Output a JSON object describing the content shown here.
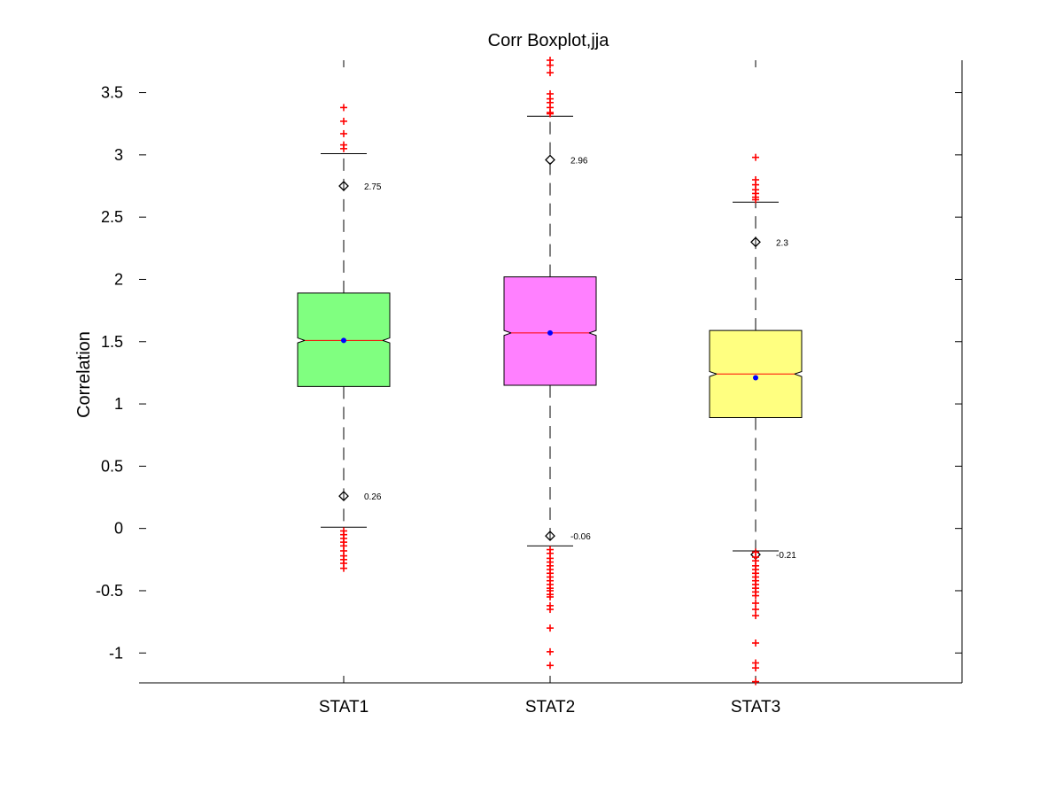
{
  "chart_data": {
    "type": "boxplot",
    "title": "Corr Boxplot,jja",
    "xlabel": "",
    "ylabel": "Correlation",
    "ylim": [
      -1.24,
      3.76
    ],
    "yticks": [
      -1,
      -0.5,
      0,
      0.5,
      1,
      1.5,
      2,
      2.5,
      3,
      3.5
    ],
    "ytick_labels": [
      "-1",
      "-0.5",
      "0",
      "0.5",
      "1",
      "1.5",
      "2",
      "2.5",
      "3",
      "3.5"
    ],
    "categories": [
      "STAT1",
      "STAT2",
      "STAT3"
    ],
    "grid": false,
    "boxes": [
      {
        "category": "STAT1",
        "color": "#80ff80",
        "q1": 1.14,
        "median": 1.51,
        "q3": 1.89,
        "notch_low": 1.49,
        "notch_high": 1.53,
        "whisker_low": 0.01,
        "whisker_high": 3.01,
        "mean": 1.51,
        "marker_high": 2.75,
        "marker_high_label": "2.75",
        "marker_low": 0.26,
        "marker_low_label": "0.26",
        "outliers": [
          3.38,
          3.27,
          3.17,
          3.08,
          3.05,
          -0.02,
          -0.05,
          -0.08,
          -0.11,
          -0.14,
          -0.18,
          -0.22,
          -0.25,
          -0.28,
          -0.32
        ]
      },
      {
        "category": "STAT2",
        "color": "#ff80ff",
        "q1": 1.15,
        "median": 1.57,
        "q3": 2.02,
        "notch_low": 1.55,
        "notch_high": 1.59,
        "whisker_low": -0.14,
        "whisker_high": 3.31,
        "mean": 1.57,
        "marker_high": 2.96,
        "marker_high_label": "2.96",
        "marker_low": -0.06,
        "marker_low_label": "-0.06",
        "outliers": [
          3.76,
          3.72,
          3.66,
          3.49,
          3.45,
          3.42,
          3.38,
          3.34,
          3.33,
          -0.17,
          -0.2,
          -0.24,
          -0.27,
          -0.3,
          -0.33,
          -0.36,
          -0.39,
          -0.42,
          -0.45,
          -0.48,
          -0.5,
          -0.53,
          -0.55,
          -0.62,
          -0.65,
          -0.8,
          -0.99,
          -1.1
        ]
      },
      {
        "category": "STAT3",
        "color": "#ffff80",
        "q1": 0.89,
        "median": 1.24,
        "q3": 1.59,
        "notch_low": 1.22,
        "notch_high": 1.26,
        "whisker_low": -0.18,
        "whisker_high": 2.62,
        "mean": 1.21,
        "marker_high": 2.3,
        "marker_high_label": "2.3",
        "marker_low": -0.21,
        "marker_low_label": "-0.21",
        "outliers": [
          2.98,
          2.8,
          2.76,
          2.72,
          2.69,
          2.66,
          2.64,
          -0.19,
          -0.23,
          -0.26,
          -0.3,
          -0.33,
          -0.36,
          -0.39,
          -0.42,
          -0.45,
          -0.48,
          -0.51,
          -0.54,
          -0.6,
          -0.65,
          -0.7,
          -0.92,
          -1.08,
          -1.12,
          -1.23
        ]
      }
    ]
  }
}
